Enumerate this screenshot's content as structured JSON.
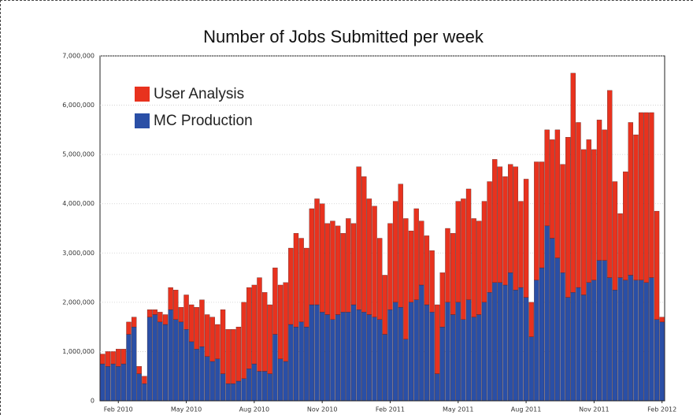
{
  "chart_data": {
    "type": "stacked_bar",
    "title": "Number of Jobs Submitted per week",
    "categories": [
      null,
      null,
      null,
      "Feb 2010",
      null,
      null,
      null,
      null,
      null,
      null,
      null,
      null,
      null,
      null,
      null,
      null,
      "May 2010",
      null,
      null,
      null,
      null,
      null,
      null,
      null,
      null,
      null,
      null,
      null,
      null,
      "Aug 2010",
      null,
      null,
      null,
      null,
      null,
      null,
      null,
      null,
      null,
      null,
      null,
      null,
      "Nov 2010",
      null,
      null,
      null,
      null,
      null,
      null,
      null,
      null,
      null,
      null,
      null,
      null,
      "Feb 2011",
      null,
      null,
      null,
      null,
      null,
      null,
      null,
      null,
      null,
      null,
      null,
      null,
      "May 2011",
      null,
      null,
      null,
      null,
      null,
      null,
      null,
      null,
      null,
      null,
      null,
      null,
      "Aug 2011",
      null,
      null,
      null,
      null,
      null,
      null,
      null,
      null,
      null,
      null,
      null,
      null,
      "Nov 2011",
      null,
      null,
      null,
      null,
      null,
      null,
      null,
      null,
      null,
      null,
      null,
      null,
      "Feb 2012"
    ],
    "series": [
      {
        "name": "MC Production",
        "color": "#2a4fa6",
        "values": [
          750000,
          700000,
          750000,
          700000,
          750000,
          1350000,
          1500000,
          550000,
          350000,
          1700000,
          1750000,
          1600000,
          1550000,
          1850000,
          1650000,
          1600000,
          1450000,
          1200000,
          1050000,
          1100000,
          900000,
          800000,
          850000,
          550000,
          350000,
          350000,
          400000,
          450000,
          650000,
          750000,
          600000,
          600000,
          550000,
          1350000,
          850000,
          800000,
          1550000,
          1500000,
          1600000,
          1500000,
          1950000,
          1950000,
          1800000,
          1750000,
          1650000,
          1750000,
          1800000,
          1800000,
          1950000,
          1850000,
          1800000,
          1750000,
          1700000,
          1650000,
          1350000,
          1850000,
          2000000,
          1900000,
          1250000,
          2000000,
          2050000,
          2350000,
          1950000,
          1800000,
          550000,
          1500000,
          2000000,
          1750000,
          2000000,
          1650000,
          2050000,
          1700000,
          1750000,
          2000000,
          2200000,
          2400000,
          2400000,
          2350000,
          2600000,
          2250000,
          2300000,
          2100000,
          1300000,
          2450000,
          2700000,
          3550000,
          3300000,
          2900000,
          2600000,
          2100000,
          2200000,
          2300000,
          2150000,
          2400000,
          2450000,
          2850000,
          2850000,
          2500000,
          2250000,
          2500000,
          2450000,
          2550000,
          2450000,
          2450000,
          2400000,
          2500000,
          1650000,
          1600000
        ]
      },
      {
        "name": "User Analysis",
        "color": "#e8321e",
        "values": [
          200000,
          300000,
          250000,
          350000,
          300000,
          250000,
          200000,
          150000,
          150000,
          150000,
          100000,
          200000,
          200000,
          450000,
          600000,
          300000,
          700000,
          750000,
          850000,
          950000,
          850000,
          900000,
          700000,
          1300000,
          1100000,
          1100000,
          1100000,
          1550000,
          1650000,
          1600000,
          1900000,
          1600000,
          1400000,
          1350000,
          1500000,
          1600000,
          1550000,
          1900000,
          1700000,
          1600000,
          1950000,
          2150000,
          2200000,
          1850000,
          2000000,
          1800000,
          1600000,
          1900000,
          1650000,
          2900000,
          2750000,
          2350000,
          2250000,
          1650000,
          1200000,
          1750000,
          2050000,
          2500000,
          2450000,
          1450000,
          1850000,
          1300000,
          1400000,
          1250000,
          1400000,
          1100000,
          1500000,
          1650000,
          2050000,
          2450000,
          2250000,
          2000000,
          1900000,
          2050000,
          2250000,
          2500000,
          2350000,
          2200000,
          2200000,
          2500000,
          1750000,
          2400000,
          700000,
          2400000,
          2150000,
          1950000,
          2000000,
          2600000,
          2200000,
          3250000,
          4450000,
          3350000,
          2950000,
          2900000,
          2650000,
          2850000,
          2650000,
          3800000,
          2200000,
          1300000,
          2200000,
          3100000,
          2950000,
          3400000,
          3450000,
          3350000,
          2200000,
          100000
        ]
      }
    ],
    "ylim": [
      0,
      7000000
    ],
    "yticks": [
      0,
      {
        "value": 1000000,
        "label": "1,000,000"
      },
      {
        "value": 2000000,
        "label": "2,000,000"
      },
      {
        "value": 3000000,
        "label": "3,000,000"
      },
      {
        "value": 4000000,
        "label": "4,000,000"
      },
      {
        "value": 5000000,
        "label": "5,000,000"
      },
      {
        "value": 6000000,
        "label": "6,000,000"
      },
      {
        "value": 7000000,
        "label": "7,000,000"
      }
    ],
    "grid": true,
    "legend": "upper left"
  }
}
